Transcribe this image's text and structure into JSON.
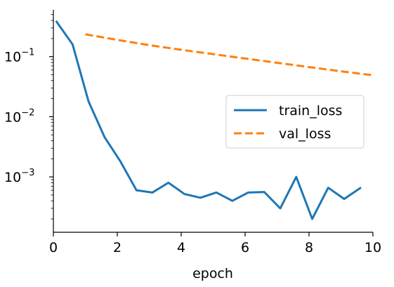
{
  "chart_data": {
    "type": "line",
    "xlabel": "epoch",
    "ylabel": "",
    "xlim": [
      0,
      10
    ],
    "ylim": [
      0.00012,
      0.6
    ],
    "yscale": "log",
    "x_ticks": [
      0,
      2,
      4,
      6,
      8,
      10
    ],
    "x_tick_labels": [
      "0",
      "2",
      "4",
      "6",
      "8",
      "10"
    ],
    "y_ticks": [
      0.1,
      0.01,
      0.001
    ],
    "y_tick_labels": [
      {
        "base": "10",
        "exp": "−1"
      },
      {
        "base": "10",
        "exp": "−2"
      },
      {
        "base": "10",
        "exp": "−3"
      }
    ],
    "grid": false,
    "legend_position": "center-right",
    "series": [
      {
        "name": "train_loss",
        "color": "#1f77b4",
        "dash": "solid",
        "x": [
          0.1,
          0.6,
          1.1,
          1.6,
          2.1,
          2.6,
          3.1,
          3.6,
          4.1,
          4.6,
          5.1,
          5.6,
          6.1,
          6.6,
          7.1,
          7.6,
          8.1,
          8.6,
          9.1,
          9.6
        ],
        "y": [
          0.38,
          0.16,
          0.018,
          0.0046,
          0.0018,
          0.0006,
          0.00055,
          0.0008,
          0.00052,
          0.00045,
          0.00055,
          0.0004,
          0.00055,
          0.00056,
          0.0003,
          0.001,
          0.0002,
          0.00066,
          0.00043,
          0.00065
        ]
      },
      {
        "name": "val_loss",
        "color": "#ff7f0e",
        "dash": "dashed",
        "x": [
          1,
          2,
          3,
          4,
          5,
          6,
          7,
          8,
          9,
          10
        ],
        "y": [
          0.235,
          0.19,
          0.155,
          0.13,
          0.11,
          0.093,
          0.079,
          0.067,
          0.057,
          0.049
        ]
      }
    ]
  }
}
